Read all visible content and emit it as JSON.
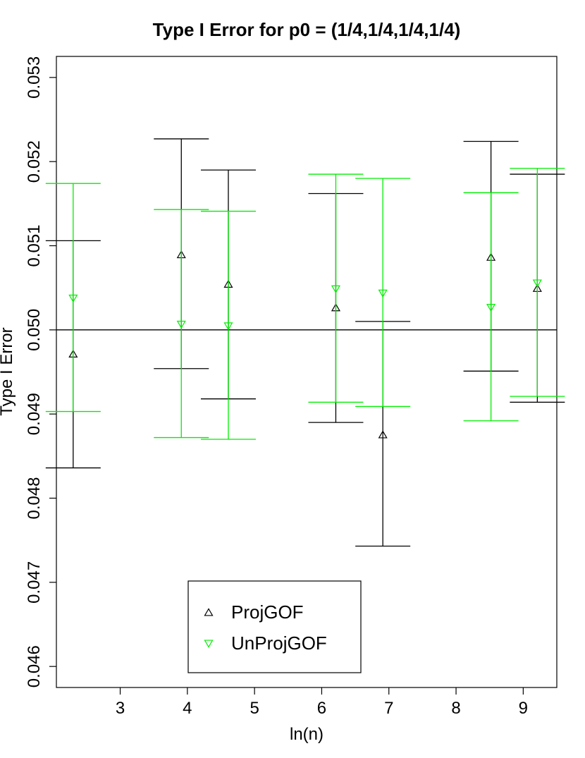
{
  "chart_data": {
    "type": "scatter",
    "title": "Type I Error for p0 = (1/4,1/4,1/4,1/4)",
    "xlabel": "ln(n)",
    "ylabel": "Type I Error",
    "xlim": [
      2.05,
      9.5
    ],
    "ylim": [
      0.04575,
      0.05325
    ],
    "x_ticks": [
      "3",
      "4",
      "5",
      "6",
      "7",
      "8",
      "9"
    ],
    "y_ticks": [
      "0.046",
      "0.047",
      "0.048",
      "0.049",
      "0.050",
      "0.051",
      "0.052",
      "0.053"
    ],
    "reference_line": 0.05,
    "series": [
      {
        "name": "ProjGOF",
        "color": "#000000",
        "marker": "triangle-up",
        "points": [
          {
            "x": 2.3,
            "y": 0.04971,
            "lower": 0.04836,
            "upper": 0.05106
          },
          {
            "x": 3.91,
            "y": 0.05089,
            "lower": 0.04954,
            "upper": 0.05227
          },
          {
            "x": 4.61,
            "y": 0.05054,
            "lower": 0.04918,
            "upper": 0.0519
          },
          {
            "x": 6.21,
            "y": 0.05026,
            "lower": 0.0489,
            "upper": 0.05162
          },
          {
            "x": 6.91,
            "y": 0.04875,
            "lower": 0.04743,
            "upper": 0.0501
          },
          {
            "x": 8.52,
            "y": 0.05086,
            "lower": 0.04951,
            "upper": 0.05224
          },
          {
            "x": 9.21,
            "y": 0.05049,
            "lower": 0.04914,
            "upper": 0.05185
          }
        ]
      },
      {
        "name": "UnProjGOF",
        "color": "#00ee00",
        "marker": "triangle-down",
        "points": [
          {
            "x": 2.3,
            "y": 0.05038,
            "lower": 0.04903,
            "upper": 0.05174
          },
          {
            "x": 3.91,
            "y": 0.05007,
            "lower": 0.04872,
            "upper": 0.05143
          },
          {
            "x": 4.61,
            "y": 0.05005,
            "lower": 0.0487,
            "upper": 0.05141
          },
          {
            "x": 6.21,
            "y": 0.05049,
            "lower": 0.04914,
            "upper": 0.05185
          },
          {
            "x": 6.91,
            "y": 0.05044,
            "lower": 0.04909,
            "upper": 0.0518
          },
          {
            "x": 8.52,
            "y": 0.05027,
            "lower": 0.04892,
            "upper": 0.05163
          },
          {
            "x": 9.21,
            "y": 0.05056,
            "lower": 0.04921,
            "upper": 0.05192
          }
        ]
      }
    ],
    "legend": {
      "position": "bottom-center",
      "entries": [
        "ProjGOF",
        "UnProjGOF"
      ]
    }
  }
}
